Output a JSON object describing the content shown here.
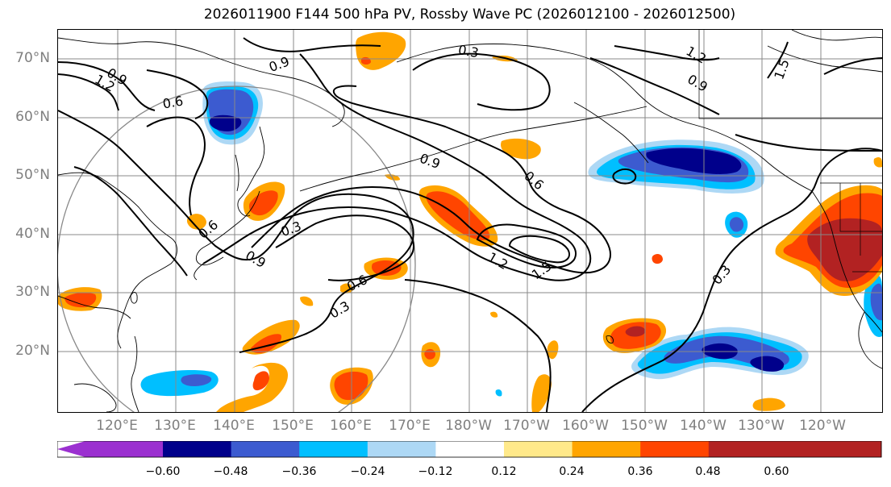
{
  "title": "2026011900 F144 500 hPa PV, Rossby Wave PC (2026012100 - 2026012500)",
  "lat_labels": [
    "70°N",
    "60°N",
    "50°N",
    "40°N",
    "30°N",
    "20°N"
  ],
  "lon_labels": [
    "120°E",
    "130°E",
    "140°E",
    "150°E",
    "160°E",
    "170°E",
    "180°W",
    "170°W",
    "160°W",
    "150°W",
    "140°W",
    "130°W",
    "120°W"
  ],
  "colorbar": {
    "ticks": [
      "−0.60",
      "−0.48",
      "−0.36",
      "−0.24",
      "−0.12",
      "0.12",
      "0.24",
      "0.36",
      "0.48",
      "0.60"
    ],
    "colors": [
      "#9b30d0",
      "#00008b",
      "#3c5bd0",
      "#00bfff",
      "#add8f5",
      "#ffffff",
      "#ffe98a",
      "#ffa500",
      "#ff4500",
      "#b22222",
      "#ff85b0"
    ]
  },
  "contour_labels": [
    "0.3",
    "0.6",
    "0.9",
    "1.2",
    "1.5"
  ],
  "fill_colors": {
    "neg_light": "#add8f5",
    "neg_mid": "#00bfff",
    "neg_dark": "#3c5bd0",
    "neg_darkest": "#00008b",
    "pos_light": "#ffe98a",
    "pos_mid": "#ffa500",
    "pos_dark": "#ff4500",
    "pos_darkest": "#b22222"
  }
}
